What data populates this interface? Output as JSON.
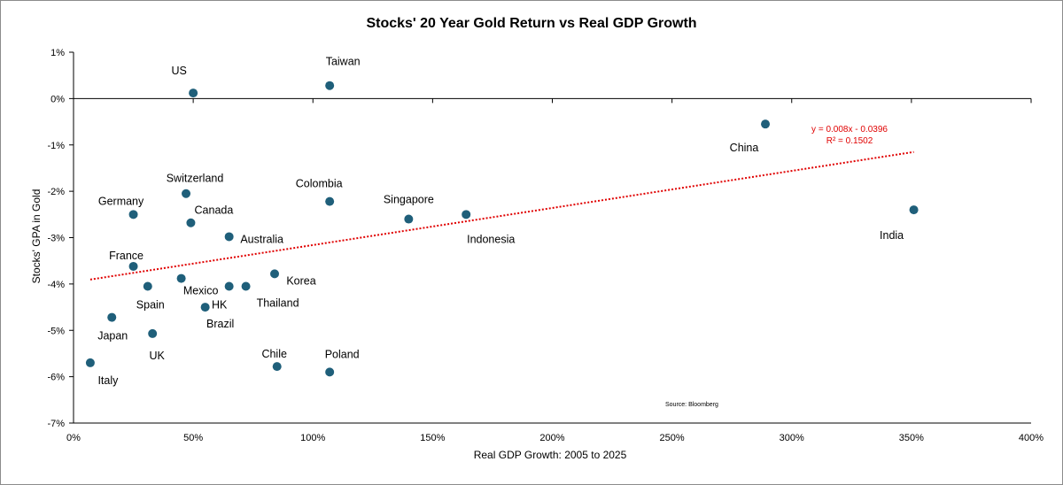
{
  "chart_data": {
    "type": "scatter",
    "title": "Stocks' 20 Year Gold Return vs Real GDP Growth",
    "xlabel": "Real GDP Growth: 2005 to 2025",
    "ylabel": "Stocks' GPA in Gold",
    "xlim": [
      0,
      400
    ],
    "ylim": [
      -7,
      1
    ],
    "x_ticks": [
      0,
      50,
      100,
      150,
      200,
      250,
      300,
      350,
      400
    ],
    "x_tick_labels": [
      "0%",
      "50%",
      "100%",
      "150%",
      "200%",
      "250%",
      "300%",
      "350%",
      "400%"
    ],
    "y_ticks": [
      1,
      0,
      -1,
      -2,
      -3,
      -4,
      -5,
      -6,
      -7
    ],
    "y_tick_labels": [
      "1%",
      "0%",
      "-1%",
      "-2%",
      "-3%",
      "-4%",
      "-5%",
      "-6%",
      "-7%"
    ],
    "marker_color": "#1f5f7a",
    "trend_color": "#e00000",
    "points": [
      {
        "label": "US",
        "x": 50,
        "y": 0.12
      },
      {
        "label": "Taiwan",
        "x": 107,
        "y": 0.28
      },
      {
        "label": "China",
        "x": 289,
        "y": -0.55
      },
      {
        "label": "India",
        "x": 351,
        "y": -2.4
      },
      {
        "label": "Switzerland",
        "x": 47,
        "y": -2.05
      },
      {
        "label": "Germany",
        "x": 25,
        "y": -2.5
      },
      {
        "label": "Canada",
        "x": 49,
        "y": -2.68
      },
      {
        "label": "Colombia",
        "x": 107,
        "y": -2.22
      },
      {
        "label": "Singapore",
        "x": 140,
        "y": -2.6
      },
      {
        "label": "Indonesia",
        "x": 164,
        "y": -2.5
      },
      {
        "label": "Australia",
        "x": 65,
        "y": -2.98
      },
      {
        "label": "France",
        "x": 25,
        "y": -3.62
      },
      {
        "label": "Korea",
        "x": 84,
        "y": -3.78
      },
      {
        "label": "Mexico",
        "x": 45,
        "y": -3.88
      },
      {
        "label": "Spain",
        "x": 31,
        "y": -4.05
      },
      {
        "label": "HK",
        "x": 65,
        "y": -4.05
      },
      {
        "label": "Thailand",
        "x": 72,
        "y": -4.05
      },
      {
        "label": "Brazil",
        "x": 55,
        "y": -4.5
      },
      {
        "label": "Japan",
        "x": 16,
        "y": -4.72
      },
      {
        "label": "UK",
        "x": 33,
        "y": -5.07
      },
      {
        "label": "Italy",
        "x": 7,
        "y": -5.7
      },
      {
        "label": "Chile",
        "x": 85,
        "y": -5.78
      },
      {
        "label": "Poland",
        "x": 107,
        "y": -5.9
      }
    ],
    "trendline": {
      "slope_per_pct": 0.008,
      "intercept": -3.96,
      "x_range": [
        7,
        351
      ],
      "equation_text": "y = 0.008x - 0.0396",
      "r2_text": "R² = 0.1502"
    },
    "source": "Source:  Bloomberg"
  }
}
